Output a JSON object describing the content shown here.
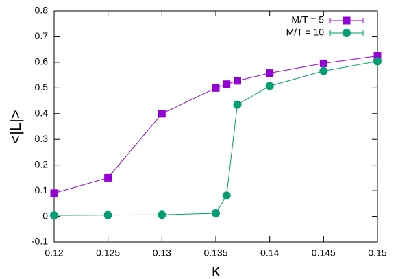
{
  "chart_data": {
    "type": "line",
    "xlabel": "κ",
    "ylabel": "<|L|>",
    "x": [
      0.12,
      0.125,
      0.13,
      0.135,
      0.136,
      0.137,
      0.14,
      0.145,
      0.15
    ],
    "series": [
      {
        "name": "M/T = 5",
        "color": "#9400d3",
        "marker": "square",
        "values": [
          0.09,
          0.15,
          0.4,
          0.5,
          0.515,
          0.528,
          0.558,
          0.596,
          0.625
        ]
      },
      {
        "name": "M/T = 10",
        "color": "#009e73",
        "marker": "circle",
        "values": [
          0.004,
          0.005,
          0.006,
          0.012,
          0.081,
          0.435,
          0.508,
          0.566,
          0.604
        ]
      }
    ],
    "xlim": [
      0.12,
      0.15
    ],
    "xticks": [
      0.12,
      0.125,
      0.13,
      0.135,
      0.14,
      0.145,
      0.15
    ],
    "ylim": [
      -0.1,
      0.8
    ],
    "yticks": [
      -0.1,
      0,
      0.1,
      0.2,
      0.3,
      0.4,
      0.5,
      0.6,
      0.7,
      0.8
    ],
    "grid": false,
    "legend": "top-right"
  }
}
